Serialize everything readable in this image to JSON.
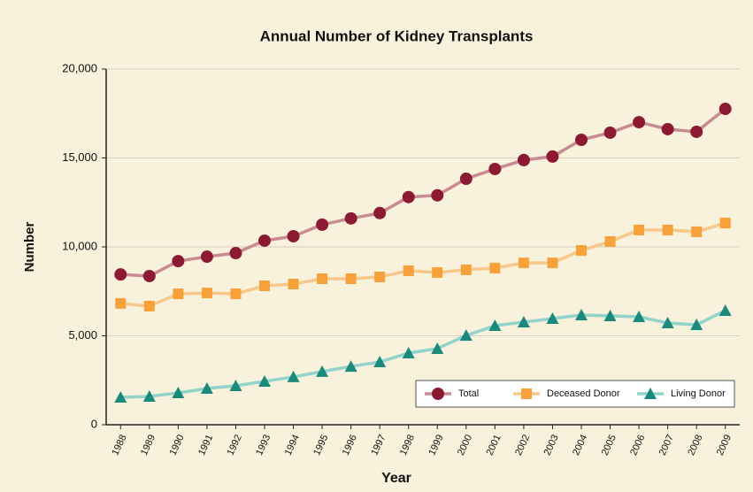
{
  "chart_data": {
    "type": "line",
    "title": "Annual Number of Kidney Transplants",
    "x_label": "Year",
    "y_label": "Number",
    "categories": [
      "1988",
      "1989",
      "1990",
      "1991",
      "1992",
      "1993",
      "1994",
      "1995",
      "1996",
      "1997",
      "1998",
      "1999",
      "2000",
      "2001",
      "2002",
      "2003",
      "2004",
      "2005",
      "2006",
      "2007",
      "2008",
      "2009"
    ],
    "series": [
      {
        "name": "Total",
        "color": "#8b1a32",
        "line_color": "#c98a92",
        "marker": "circle",
        "values": [
          8450,
          8360,
          9200,
          9450,
          9650,
          10350,
          10600,
          11250,
          11600,
          11900,
          12800,
          12900,
          13830,
          14380,
          14880,
          15080,
          16020,
          16420,
          17010,
          16620,
          16470,
          17760
        ]
      },
      {
        "name": "Deceased Donor",
        "color": "#f7a13a",
        "line_color": "#f7c88a",
        "marker": "square",
        "values": [
          6820,
          6670,
          7360,
          7410,
          7360,
          7810,
          7910,
          8210,
          8210,
          8310,
          8660,
          8560,
          8710,
          8810,
          9100,
          9100,
          9800,
          10300,
          10950,
          10950,
          10850,
          11340
        ]
      },
      {
        "name": "Living Donor",
        "color": "#1a8a7c",
        "line_color": "#92d3cb",
        "marker": "triangle",
        "values": [
          1540,
          1590,
          1790,
          2040,
          2190,
          2440,
          2690,
          2990,
          3280,
          3530,
          4030,
          4280,
          5020,
          5570,
          5770,
          5970,
          6170,
          6120,
          6070,
          5720,
          5620,
          6420
        ]
      }
    ],
    "ylim": [
      0,
      20000
    ],
    "yticks": [
      0,
      {
        "value": 5000,
        "label": "5,000"
      },
      {
        "value": 10000,
        "label": "10,000"
      },
      {
        "value": 15000,
        "label": "15,000"
      },
      {
        "value": 20000,
        "label": "20,000"
      }
    ],
    "grid": true,
    "legend": "lower right"
  }
}
